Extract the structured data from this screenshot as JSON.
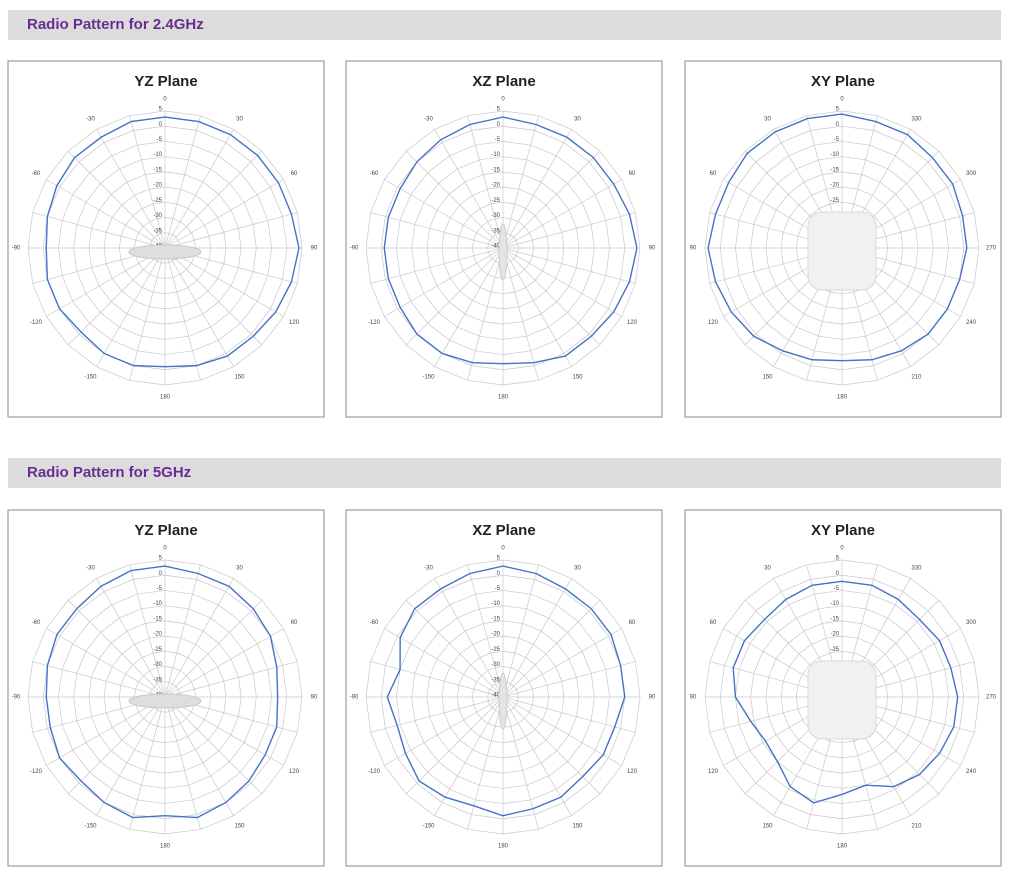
{
  "sections": [
    {
      "title": "Radio Pattern for 2.4GHz"
    },
    {
      "title": "Radio Pattern for 5GHz"
    }
  ],
  "chart_data": [
    {
      "type": "radar",
      "title": "YZ Plane",
      "direction": "clockwise",
      "color": "#4472c4",
      "theta": [
        0,
        15,
        30,
        45,
        60,
        75,
        90,
        105,
        120,
        135,
        150,
        165,
        180,
        195,
        210,
        225,
        240,
        255,
        270,
        285,
        300,
        315,
        330,
        345
      ],
      "values": [
        3,
        3,
        3,
        3,
        3,
        3,
        4,
        3,
        2,
        1,
        1,
        0,
        -1,
        0,
        0,
        -1,
        0,
        0,
        -1,
        0,
        1,
        2,
        2,
        3
      ],
      "thetaticks": [
        0,
        30,
        60,
        90,
        120,
        150,
        180,
        -150,
        -120,
        -90,
        -60,
        -30
      ],
      "rlim": [
        -40,
        5
      ],
      "rticks": [
        5,
        0,
        -5,
        -10,
        -15,
        -20,
        -25,
        -30,
        -35,
        -40
      ]
    },
    {
      "type": "radar",
      "title": "XZ Plane",
      "direction": "clockwise",
      "color": "#4472c4",
      "theta": [
        0,
        15,
        30,
        45,
        60,
        75,
        90,
        105,
        120,
        135,
        150,
        165,
        180,
        195,
        210,
        225,
        240,
        255,
        270,
        285,
        300,
        315,
        330,
        345
      ],
      "values": [
        3,
        2,
        2,
        2,
        2,
        3,
        4,
        3,
        2,
        1,
        1,
        -1,
        -2,
        -1,
        0,
        0,
        -1,
        -1,
        -1,
        -1,
        -1,
        0,
        1,
        2
      ],
      "thetaticks": [
        0,
        30,
        60,
        90,
        120,
        150,
        180,
        -150,
        -120,
        -90,
        -60,
        -30
      ],
      "rlim": [
        -40,
        5
      ],
      "rticks": [
        5,
        0,
        -5,
        -10,
        -15,
        -20,
        -25,
        -30,
        -35,
        -40
      ]
    },
    {
      "type": "radar",
      "title": "XY Plane",
      "direction": "counterclockwise",
      "color": "#4472c4",
      "theta": [
        0,
        15,
        30,
        45,
        60,
        75,
        90,
        105,
        120,
        135,
        150,
        165,
        180,
        195,
        210,
        225,
        240,
        255,
        270,
        285,
        300,
        315,
        330,
        345
      ],
      "values": [
        4,
        4,
        4,
        4,
        3,
        3,
        4,
        3,
        2,
        1,
        -1,
        -2,
        -3,
        -2,
        -1,
        0,
        0,
        0,
        1,
        1,
        2,
        2,
        3,
        3
      ],
      "thetaticks": [
        0,
        30,
        60,
        90,
        120,
        150,
        180,
        210,
        240,
        270,
        300,
        330
      ],
      "rlim": [
        -40,
        5
      ],
      "rticks": [
        5,
        0,
        -5,
        -10,
        -15,
        -20,
        -25
      ]
    },
    {
      "type": "radar",
      "title": "YZ Plane",
      "direction": "clockwise",
      "color": "#4472c4",
      "theta": [
        0,
        15,
        30,
        45,
        60,
        75,
        90,
        105,
        120,
        135,
        150,
        165,
        180,
        195,
        210,
        225,
        240,
        255,
        270,
        285,
        300,
        315,
        330,
        345
      ],
      "values": [
        3,
        2,
        2,
        1,
        0,
        -2,
        -3,
        -2,
        -2,
        -1,
        0,
        1,
        -1,
        1,
        0,
        -1,
        0,
        -1,
        -1,
        0,
        1,
        1,
        2,
        3
      ],
      "thetaticks": [
        0,
        30,
        60,
        90,
        120,
        150,
        180,
        -150,
        -120,
        -90,
        -60,
        -30
      ],
      "rlim": [
        -40,
        5
      ],
      "rticks": [
        5,
        0,
        -5,
        -10,
        -15,
        -20,
        -25,
        -30,
        -35,
        -40
      ]
    },
    {
      "type": "radar",
      "title": "XZ Plane",
      "direction": "clockwise",
      "color": "#4472c4",
      "theta": [
        0,
        15,
        30,
        45,
        60,
        75,
        90,
        105,
        120,
        135,
        150,
        165,
        180,
        195,
        210,
        225,
        240,
        255,
        270,
        285,
        300,
        315,
        330,
        345
      ],
      "values": [
        3,
        2,
        1,
        1,
        1,
        0,
        0,
        -2,
        -2,
        -3,
        -2,
        -2,
        -1,
        -3,
        -2,
        -1,
        -3,
        -4,
        -2,
        -5,
        -1,
        1,
        1,
        2
      ],
      "thetaticks": [
        0,
        30,
        60,
        90,
        120,
        150,
        180,
        -150,
        -120,
        -90,
        -60,
        -30
      ],
      "rlim": [
        -40,
        5
      ],
      "rticks": [
        5,
        0,
        -5,
        -10,
        -15,
        -20,
        -25,
        -30,
        -35,
        -40
      ]
    },
    {
      "type": "radar",
      "title": "XY Plane",
      "direction": "counterclockwise",
      "color": "#4472c4",
      "theta": [
        0,
        15,
        30,
        45,
        60,
        75,
        90,
        105,
        120,
        135,
        150,
        165,
        180,
        195,
        210,
        225,
        240,
        255,
        270,
        285,
        300,
        315,
        330,
        345
      ],
      "values": [
        -2,
        -2,
        -3,
        -4,
        -3,
        -3,
        -5,
        -9,
        -11,
        -10,
        -6,
        -4,
        -8,
        -10,
        -6,
        -4,
        -3,
        -2,
        -2,
        -3,
        -3,
        -4,
        -3,
        -2
      ],
      "thetaticks": [
        0,
        30,
        60,
        90,
        120,
        150,
        180,
        210,
        240,
        270,
        300,
        330
      ],
      "rlim": [
        -40,
        5
      ],
      "rticks": [
        5,
        0,
        -5,
        -10,
        -15,
        -20,
        -25
      ]
    }
  ]
}
